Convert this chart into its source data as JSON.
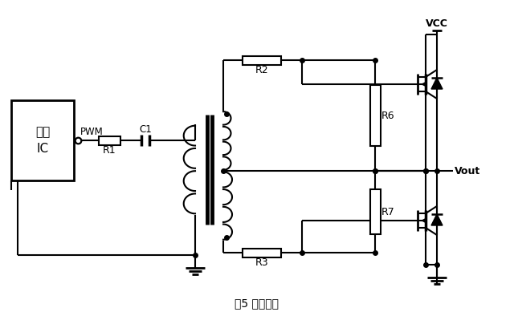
{
  "title": "图5 隔离驱动",
  "bg_color": "#ffffff",
  "labels": {
    "ic_line1": "电源",
    "ic_line2": "IC",
    "pwm": "PWM",
    "r1": "R1",
    "c1": "C1",
    "r2": "R2",
    "r3": "R3",
    "r6": "R6",
    "r7": "R7",
    "vcc": "VCC",
    "vout": "Vout"
  }
}
